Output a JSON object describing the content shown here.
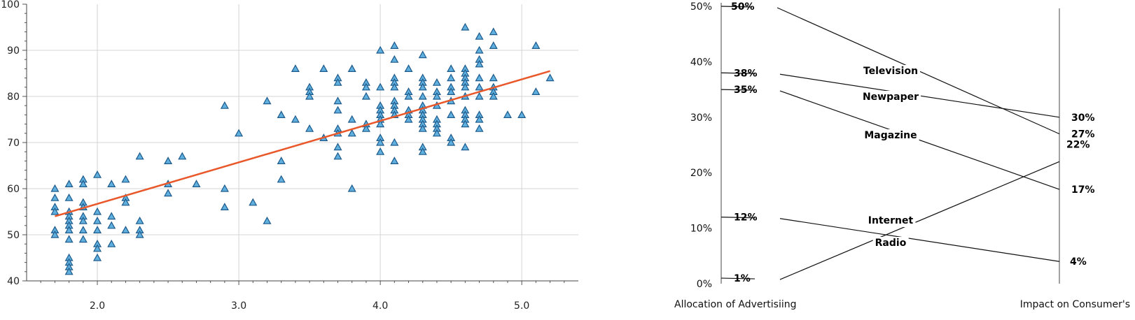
{
  "chart_data": [
    {
      "type": "scatter",
      "title": "",
      "xlabel": "",
      "ylabel": "",
      "xlim": [
        1.5,
        5.4
      ],
      "ylim": [
        40,
        100
      ],
      "xticks": [
        "2.0",
        "3.0",
        "4.0",
        "5.0"
      ],
      "xtick_values": [
        2,
        3,
        4,
        5
      ],
      "yticks": [
        "40",
        "50",
        "60",
        "70",
        "80",
        "90",
        "100"
      ],
      "ytick_values": [
        40,
        50,
        60,
        70,
        80,
        90,
        100
      ],
      "grid": true,
      "marker_color": "#5fb0de",
      "marker_edge": "#1d5a8c",
      "trend_color": "#e8582a",
      "trendline": {
        "x": [
          1.7,
          5.2
        ],
        "y": [
          54,
          85.5
        ]
      },
      "points": [
        [
          1.7,
          60
        ],
        [
          1.7,
          58
        ],
        [
          1.7,
          56
        ],
        [
          1.7,
          55
        ],
        [
          1.7,
          51
        ],
        [
          1.7,
          50
        ],
        [
          1.8,
          61
        ],
        [
          1.8,
          58
        ],
        [
          1.8,
          55
        ],
        [
          1.8,
          54
        ],
        [
          1.8,
          53
        ],
        [
          1.8,
          52
        ],
        [
          1.8,
          51
        ],
        [
          1.8,
          49
        ],
        [
          1.8,
          45
        ],
        [
          1.8,
          44
        ],
        [
          1.8,
          43
        ],
        [
          1.8,
          42
        ],
        [
          1.9,
          62
        ],
        [
          1.9,
          61
        ],
        [
          1.9,
          57
        ],
        [
          1.9,
          56
        ],
        [
          1.9,
          54
        ],
        [
          1.9,
          53
        ],
        [
          1.9,
          51
        ],
        [
          1.9,
          49
        ],
        [
          2.0,
          63
        ],
        [
          2.0,
          55
        ],
        [
          2.0,
          53
        ],
        [
          2.0,
          51
        ],
        [
          2.0,
          48
        ],
        [
          2.0,
          47
        ],
        [
          2.0,
          45
        ],
        [
          2.1,
          61
        ],
        [
          2.1,
          54
        ],
        [
          2.1,
          52
        ],
        [
          2.1,
          48
        ],
        [
          2.2,
          62
        ],
        [
          2.2,
          58
        ],
        [
          2.2,
          57
        ],
        [
          2.2,
          51
        ],
        [
          2.3,
          67
        ],
        [
          2.3,
          53
        ],
        [
          2.3,
          51
        ],
        [
          2.3,
          50
        ],
        [
          2.5,
          66
        ],
        [
          2.5,
          61
        ],
        [
          2.5,
          59
        ],
        [
          2.6,
          67
        ],
        [
          2.7,
          61
        ],
        [
          2.9,
          78
        ],
        [
          2.9,
          60
        ],
        [
          2.9,
          56
        ],
        [
          3.0,
          72
        ],
        [
          3.1,
          57
        ],
        [
          3.2,
          79
        ],
        [
          3.2,
          53
        ],
        [
          3.3,
          76
        ],
        [
          3.3,
          66
        ],
        [
          3.3,
          62
        ],
        [
          3.4,
          86
        ],
        [
          3.4,
          75
        ],
        [
          3.5,
          82
        ],
        [
          3.5,
          81
        ],
        [
          3.5,
          80
        ],
        [
          3.5,
          73
        ],
        [
          3.6,
          86
        ],
        [
          3.6,
          71
        ],
        [
          3.7,
          84
        ],
        [
          3.7,
          83
        ],
        [
          3.7,
          79
        ],
        [
          3.7,
          77
        ],
        [
          3.7,
          73
        ],
        [
          3.7,
          72
        ],
        [
          3.7,
          69
        ],
        [
          3.7,
          67
        ],
        [
          3.8,
          86
        ],
        [
          3.8,
          75
        ],
        [
          3.8,
          72
        ],
        [
          3.8,
          60
        ],
        [
          3.9,
          83
        ],
        [
          3.9,
          82
        ],
        [
          3.9,
          80
        ],
        [
          3.9,
          74
        ],
        [
          3.9,
          73
        ],
        [
          4.0,
          90
        ],
        [
          4.0,
          82
        ],
        [
          4.0,
          78
        ],
        [
          4.0,
          77
        ],
        [
          4.0,
          76
        ],
        [
          4.0,
          75
        ],
        [
          4.0,
          74
        ],
        [
          4.0,
          71
        ],
        [
          4.0,
          70
        ],
        [
          4.0,
          68
        ],
        [
          4.1,
          91
        ],
        [
          4.1,
          88
        ],
        [
          4.1,
          84
        ],
        [
          4.1,
          83
        ],
        [
          4.1,
          82
        ],
        [
          4.1,
          79
        ],
        [
          4.1,
          78
        ],
        [
          4.1,
          77
        ],
        [
          4.1,
          76
        ],
        [
          4.1,
          70
        ],
        [
          4.1,
          66
        ],
        [
          4.2,
          86
        ],
        [
          4.2,
          81
        ],
        [
          4.2,
          80
        ],
        [
          4.2,
          77
        ],
        [
          4.2,
          76
        ],
        [
          4.2,
          75
        ],
        [
          4.3,
          89
        ],
        [
          4.3,
          84
        ],
        [
          4.3,
          83
        ],
        [
          4.3,
          82
        ],
        [
          4.3,
          80
        ],
        [
          4.3,
          78
        ],
        [
          4.3,
          77
        ],
        [
          4.3,
          76
        ],
        [
          4.3,
          75
        ],
        [
          4.3,
          74
        ],
        [
          4.3,
          73
        ],
        [
          4.3,
          69
        ],
        [
          4.3,
          68
        ],
        [
          4.4,
          83
        ],
        [
          4.4,
          81
        ],
        [
          4.4,
          80
        ],
        [
          4.4,
          78
        ],
        [
          4.4,
          75
        ],
        [
          4.4,
          74
        ],
        [
          4.4,
          73
        ],
        [
          4.4,
          72
        ],
        [
          4.5,
          86
        ],
        [
          4.5,
          84
        ],
        [
          4.5,
          82
        ],
        [
          4.5,
          81
        ],
        [
          4.5,
          79
        ],
        [
          4.5,
          76
        ],
        [
          4.5,
          71
        ],
        [
          4.5,
          70
        ],
        [
          4.6,
          95
        ],
        [
          4.6,
          86
        ],
        [
          4.6,
          85
        ],
        [
          4.6,
          84
        ],
        [
          4.6,
          83
        ],
        [
          4.6,
          82
        ],
        [
          4.6,
          80
        ],
        [
          4.6,
          77
        ],
        [
          4.6,
          76
        ],
        [
          4.6,
          75
        ],
        [
          4.6,
          74
        ],
        [
          4.6,
          69
        ],
        [
          4.7,
          93
        ],
        [
          4.7,
          90
        ],
        [
          4.7,
          88
        ],
        [
          4.7,
          87
        ],
        [
          4.7,
          84
        ],
        [
          4.7,
          82
        ],
        [
          4.7,
          80
        ],
        [
          4.7,
          76
        ],
        [
          4.7,
          75
        ],
        [
          4.7,
          73
        ],
        [
          4.8,
          94
        ],
        [
          4.8,
          91
        ],
        [
          4.8,
          84
        ],
        [
          4.8,
          82
        ],
        [
          4.8,
          81
        ],
        [
          4.8,
          80
        ],
        [
          4.9,
          76
        ],
        [
          5.0,
          76
        ],
        [
          5.1,
          91
        ],
        [
          5.1,
          81
        ],
        [
          5.2,
          84
        ]
      ]
    },
    {
      "type": "line",
      "subtype": "slope",
      "title": "",
      "x": [
        "Allocation of Advertisiing",
        "Impact on Consumer's"
      ],
      "ylim": [
        0,
        50
      ],
      "yticks": [
        "0%",
        "10%",
        "20%",
        "30%",
        "40%",
        "50%"
      ],
      "ytick_values": [
        0,
        10,
        20,
        30,
        40,
        50
      ],
      "series": [
        {
          "name": "Television",
          "values": [
            50,
            27
          ],
          "labels": [
            "50%",
            "27%"
          ]
        },
        {
          "name": "Newpaper",
          "values": [
            38,
            30
          ],
          "labels": [
            "38%",
            "30%"
          ]
        },
        {
          "name": "Magazine",
          "values": [
            35,
            17
          ],
          "labels": [
            "35%",
            "17%"
          ]
        },
        {
          "name": "Internet",
          "values": [
            1,
            22
          ],
          "labels": [
            "1%",
            "22%"
          ]
        },
        {
          "name": "Radio",
          "values": [
            12,
            4
          ],
          "labels": [
            "12%",
            "4%"
          ]
        }
      ]
    }
  ]
}
